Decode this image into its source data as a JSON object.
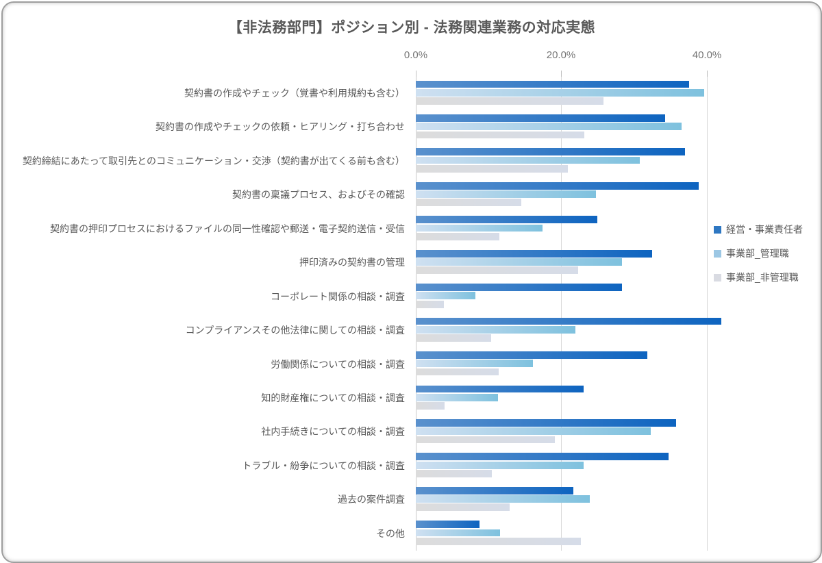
{
  "title": "【非法務部門】ポジション別 - 法務関連業務の対応実態",
  "legend": {
    "items": [
      {
        "label": "経営・事業責任者",
        "color": "#2E77C2"
      },
      {
        "label": "事業部_管理職",
        "color": "#9CC7E4"
      },
      {
        "label": "事業部_非管理職",
        "color": "#D9DBE2"
      }
    ]
  },
  "chart_data": {
    "type": "bar",
    "orientation": "horizontal",
    "title": "【非法務部門】ポジション別 - 法務関連業務の対応実態",
    "categories": [
      "契約書の作成やチェック（覚書や利用規約も含む）",
      "契約書の作成やチェックの依頼・ヒアリング・打ち合わせ",
      "契約締結にあたって取引先とのコミュニケーション・交渉（契約書が出てくる前も含む）",
      "契約書の稟議プロセス、およびその確認",
      "契約書の押印プロセスにおけるファイルの同一性確認や郵送・電子契約送信・受信",
      "押印済みの契約書の管理",
      "コーポレート関係の相談・調査",
      "コンプライアンスその他法律に関しての相談・調査",
      "労働関係についての相談・調査",
      "知的財産権についての相談・調査",
      "社内手続きについての相談・調査",
      "トラブル・紛争についての相談・調査",
      "過去の案件調査",
      "その他"
    ],
    "series": [
      {
        "name": "経営・事業責任者",
        "values": [
          37.6,
          34.3,
          37.0,
          38.9,
          25.0,
          32.5,
          28.4,
          42.0,
          31.9,
          23.1,
          35.8,
          34.8,
          21.7,
          8.8
        ]
      },
      {
        "name": "事業部_管理職",
        "values": [
          39.7,
          36.6,
          30.8,
          24.8,
          17.4,
          28.4,
          8.2,
          22.0,
          16.1,
          11.3,
          32.3,
          23.1,
          23.9,
          11.6
        ]
      },
      {
        "name": "事業部_非管理職",
        "values": [
          25.8,
          23.2,
          20.9,
          14.5,
          11.5,
          22.3,
          3.9,
          10.4,
          11.4,
          4.0,
          19.1,
          10.5,
          12.9,
          22.7
        ]
      }
    ],
    "x_ticks": [
      0,
      20,
      40
    ],
    "x_tick_labels": [
      "0.0%",
      "20.0%",
      "40.0%"
    ],
    "xlim": [
      0,
      42.5
    ],
    "unit": "%",
    "grid": "vertical",
    "legend_position": "right",
    "series_colors": [
      "#2E77C2",
      "#9CC7E4",
      "#D9DBE2"
    ]
  }
}
